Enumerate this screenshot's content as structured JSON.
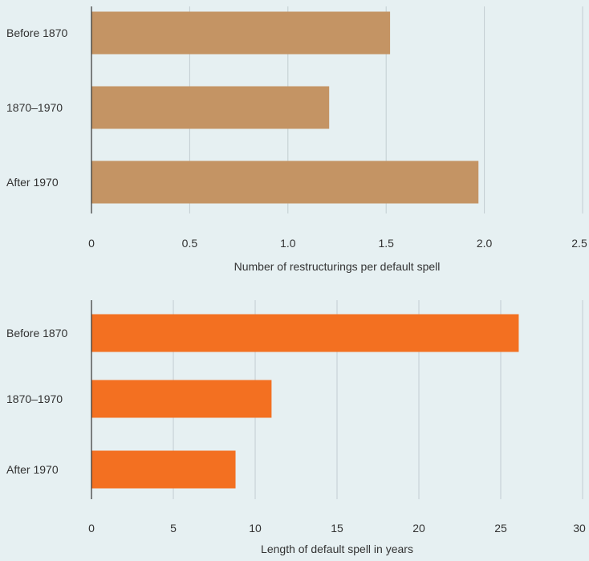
{
  "chart_data": [
    {
      "type": "bar",
      "orientation": "horizontal",
      "categories": [
        "Before 1870",
        "1870–1970",
        "After 1970"
      ],
      "values": [
        1.52,
        1.21,
        1.97
      ],
      "xlabel": "Number of restructurings per default spell",
      "xlim": [
        0,
        2.5
      ],
      "xticks": [
        "0",
        "0.5",
        "1.0",
        "1.5",
        "2.0",
        "2.5"
      ],
      "grid": "vertical",
      "color": "#c49464"
    },
    {
      "type": "bar",
      "orientation": "horizontal",
      "categories": [
        "Before 1870",
        "1870–1970",
        "After 1970"
      ],
      "values": [
        26.1,
        11,
        8.8
      ],
      "xlabel": "Length of default spell in years",
      "xlim": [
        0,
        30
      ],
      "xticks": [
        "0",
        "5",
        "10",
        "15",
        "20",
        "25",
        "30"
      ],
      "grid": "vertical",
      "color": "#f37021"
    }
  ]
}
